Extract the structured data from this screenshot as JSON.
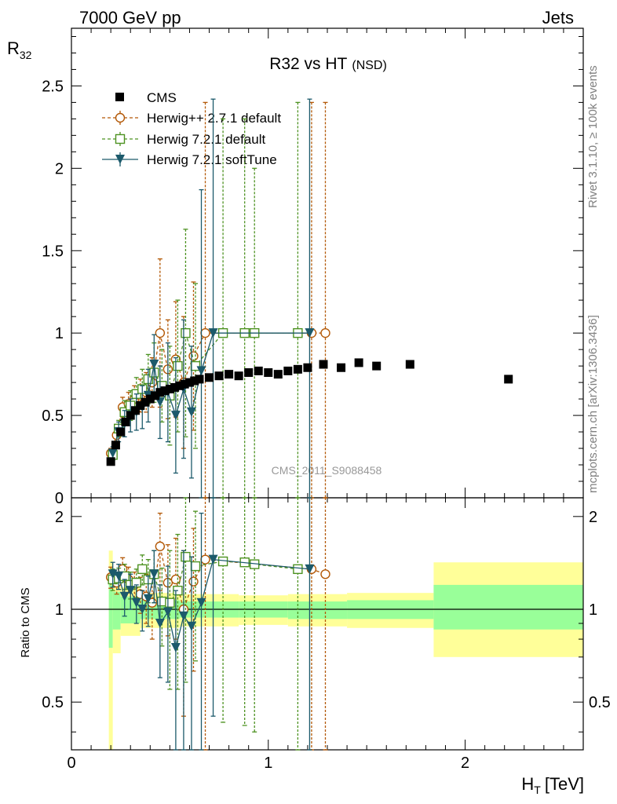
{
  "header": {
    "left": "7000 GeV pp",
    "right": "Jets"
  },
  "side_texts": {
    "rivet": "Rivet 3.1.10, ≥ 100k events",
    "mcplots": "mcplots.cern.ch [arXiv:1306.3436]"
  },
  "watermark": "CMS_2011_S9088458",
  "colors": {
    "cms": "#000000",
    "herwigpp": "#b35806",
    "herwig": "#4d9221",
    "softtune": "#1c5a6b",
    "band_outer": "#ffff99",
    "band_inner": "#99ff99"
  },
  "chart_data": [
    {
      "type": "scatter",
      "title": "R32 vs HT",
      "title_suffix": "(NSD)",
      "ylabel": "R",
      "ylabel_sub": "32",
      "xlim": [
        0,
        2.6
      ],
      "ylim": [
        0,
        2.85
      ],
      "yticks": [
        "0.5",
        "1",
        "1.5",
        "2",
        "2.5"
      ],
      "legend": [
        "CMS",
        "Herwig++ 2.7.1 default",
        "Herwig 7.2.1 default",
        "Herwig 7.2.1 softTune"
      ],
      "series": [
        {
          "name": "CMS",
          "x": [
            0.2,
            0.225,
            0.25,
            0.275,
            0.3,
            0.325,
            0.35,
            0.375,
            0.4,
            0.425,
            0.45,
            0.475,
            0.5,
            0.525,
            0.55,
            0.575,
            0.6,
            0.625,
            0.65,
            0.7,
            0.75,
            0.8,
            0.85,
            0.9,
            0.95,
            1.0,
            1.05,
            1.1,
            1.15,
            1.2,
            1.28,
            1.37,
            1.46,
            1.55,
            1.72,
            2.22
          ],
          "y": [
            0.22,
            0.32,
            0.4,
            0.46,
            0.5,
            0.53,
            0.56,
            0.58,
            0.6,
            0.62,
            0.64,
            0.65,
            0.66,
            0.67,
            0.68,
            0.69,
            0.7,
            0.71,
            0.72,
            0.73,
            0.74,
            0.75,
            0.74,
            0.76,
            0.77,
            0.76,
            0.75,
            0.77,
            0.78,
            0.79,
            0.81,
            0.79,
            0.82,
            0.8,
            0.81,
            0.72
          ]
        },
        {
          "name": "Herwig++ 2.7.1 default",
          "x": [
            0.2,
            0.23,
            0.26,
            0.29,
            0.32,
            0.35,
            0.38,
            0.41,
            0.45,
            0.49,
            0.53,
            0.57,
            0.62,
            0.68,
            1.22,
            1.29
          ],
          "y": [
            0.27,
            0.38,
            0.55,
            0.57,
            0.6,
            0.62,
            0.64,
            0.7,
            1.0,
            0.78,
            0.84,
            0.7,
            0.86,
            1.0,
            1.0,
            1.0
          ],
          "err": [
            0.03,
            0.04,
            0.06,
            0.07,
            0.08,
            0.1,
            0.12,
            0.15,
            0.45,
            0.3,
            0.35,
            0.4,
            0.45,
            1.4,
            1.4,
            1.4
          ]
        },
        {
          "name": "Herwig 7.2.1 default",
          "x": [
            0.21,
            0.24,
            0.27,
            0.3,
            0.33,
            0.36,
            0.39,
            0.42,
            0.46,
            0.5,
            0.54,
            0.58,
            0.63,
            0.77,
            0.88,
            0.93,
            1.15
          ],
          "y": [
            0.26,
            0.42,
            0.52,
            0.56,
            0.63,
            0.66,
            0.72,
            0.76,
            0.68,
            0.62,
            0.8,
            1.0,
            0.8,
            1.0,
            1.0,
            1.0,
            1.0
          ],
          "err": [
            0.03,
            0.05,
            0.07,
            0.09,
            0.1,
            0.12,
            0.15,
            0.18,
            0.22,
            0.3,
            0.4,
            0.63,
            0.5,
            1.3,
            1.3,
            1.0,
            1.4
          ]
        },
        {
          "name": "Herwig 7.2.1 softTune",
          "x": [
            0.21,
            0.24,
            0.27,
            0.3,
            0.33,
            0.36,
            0.39,
            0.42,
            0.45,
            0.49,
            0.53,
            0.57,
            0.61,
            0.66,
            0.72,
            1.21
          ],
          "y": [
            0.27,
            0.4,
            0.45,
            0.5,
            0.52,
            0.55,
            0.62,
            0.81,
            0.58,
            0.64,
            0.5,
            0.66,
            0.52,
            0.77,
            1.0,
            1.0
          ],
          "err": [
            0.04,
            0.06,
            0.08,
            0.1,
            0.11,
            0.13,
            0.16,
            0.18,
            0.22,
            0.3,
            0.35,
            0.42,
            0.4,
            1.1,
            1.42,
            1.42
          ]
        }
      ]
    },
    {
      "type": "scatter",
      "ylabel": "Ratio to CMS",
      "xlabel": "H",
      "xlabel_sub": "T",
      "xlabel_unit": "[TeV]",
      "xlim": [
        0,
        2.6
      ],
      "ylim": [
        0.35,
        2.3
      ],
      "yticks": [
        "0.5",
        "1",
        "2"
      ],
      "xticks": [
        "0",
        "1",
        "2"
      ],
      "band_bins": [
        {
          "x0": 0.19,
          "x1": 0.21,
          "in_lo": 0.75,
          "in_hi": 1.25,
          "out_lo": 0.35,
          "out_hi": 1.55
        },
        {
          "x0": 0.21,
          "x1": 0.25,
          "in_lo": 0.86,
          "in_hi": 1.14,
          "out_lo": 0.72,
          "out_hi": 1.28
        },
        {
          "x0": 0.25,
          "x1": 0.35,
          "in_lo": 0.9,
          "in_hi": 1.1,
          "out_lo": 0.82,
          "out_hi": 1.18
        },
        {
          "x0": 0.35,
          "x1": 0.55,
          "in_lo": 0.93,
          "in_hi": 1.07,
          "out_lo": 0.87,
          "out_hi": 1.13
        },
        {
          "x0": 0.55,
          "x1": 0.85,
          "in_lo": 0.94,
          "in_hi": 1.06,
          "out_lo": 0.88,
          "out_hi": 1.12
        },
        {
          "x0": 0.85,
          "x1": 1.1,
          "in_lo": 0.94,
          "in_hi": 1.06,
          "out_lo": 0.89,
          "out_hi": 1.11
        },
        {
          "x0": 1.1,
          "x1": 1.4,
          "in_lo": 0.93,
          "in_hi": 1.06,
          "out_lo": 0.88,
          "out_hi": 1.12
        },
        {
          "x0": 1.4,
          "x1": 1.84,
          "in_lo": 0.93,
          "in_hi": 1.07,
          "out_lo": 0.87,
          "out_hi": 1.13
        },
        {
          "x0": 1.84,
          "x1": 2.6,
          "in_lo": 0.86,
          "in_hi": 1.2,
          "out_lo": 0.7,
          "out_hi": 1.42
        }
      ],
      "series": [
        {
          "name": "Herwig++ 2.7.1 default",
          "x": [
            0.2,
            0.23,
            0.26,
            0.29,
            0.32,
            0.35,
            0.38,
            0.41,
            0.45,
            0.49,
            0.53,
            0.57,
            0.62,
            0.68,
            1.22,
            1.29
          ],
          "y": [
            1.27,
            1.22,
            1.35,
            1.25,
            1.2,
            1.12,
            1.1,
            1.05,
            1.6,
            1.22,
            1.25,
            1.0,
            1.23,
            1.45,
            1.35,
            1.3
          ],
          "err": [
            0.1,
            0.1,
            0.12,
            0.12,
            0.12,
            0.15,
            0.2,
            0.25,
            0.45,
            0.4,
            0.45,
            0.55,
            0.6,
            1.1,
            1.0,
            1.0
          ]
        },
        {
          "name": "Herwig 7.2.1 default",
          "x": [
            0.21,
            0.24,
            0.27,
            0.3,
            0.33,
            0.36,
            0.39,
            0.42,
            0.46,
            0.5,
            0.54,
            0.58,
            0.63,
            0.77,
            0.88,
            0.93,
            1.15
          ],
          "y": [
            1.25,
            1.26,
            1.28,
            1.2,
            1.22,
            1.35,
            1.25,
            1.3,
            1.06,
            1.05,
            1.15,
            1.48,
            1.38,
            1.43,
            1.42,
            1.4,
            1.35
          ],
          "err": [
            0.1,
            0.1,
            0.12,
            0.12,
            0.13,
            0.15,
            0.2,
            0.25,
            0.3,
            0.5,
            0.6,
            0.9,
            0.7,
            1.0,
            1.0,
            1.0,
            1.0
          ]
        },
        {
          "name": "Herwig 7.2.1 softTune",
          "x": [
            0.21,
            0.24,
            0.27,
            0.3,
            0.33,
            0.36,
            0.39,
            0.42,
            0.45,
            0.49,
            0.53,
            0.57,
            0.61,
            0.66,
            0.72,
            1.21
          ],
          "y": [
            1.3,
            1.28,
            1.1,
            1.15,
            1.05,
            1.0,
            1.08,
            1.3,
            0.9,
            0.98,
            0.75,
            0.95,
            0.88,
            1.05,
            1.45,
            1.35
          ],
          "err": [
            0.12,
            0.12,
            0.15,
            0.15,
            0.15,
            0.15,
            0.2,
            0.25,
            0.3,
            0.4,
            0.4,
            0.6,
            0.6,
            1.0,
            1.0,
            1.0
          ]
        }
      ]
    }
  ]
}
